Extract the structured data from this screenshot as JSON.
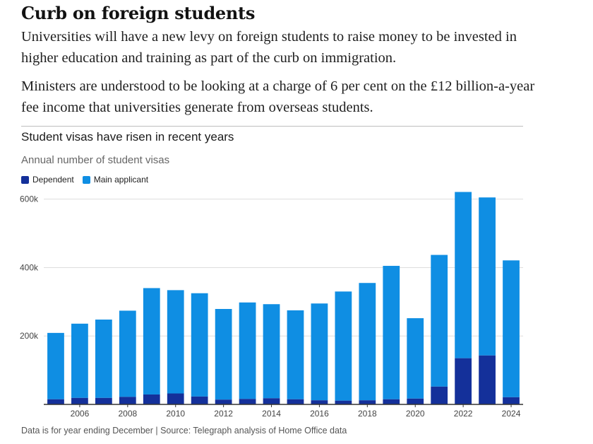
{
  "headline": "Curb on foreign students",
  "standfirst": [
    "Universities will have a new levy on foreign students to raise money to be invested in higher education and training as part of the curb on immigration.",
    "Ministers are understood to be looking at a charge of 6 per cent on the £12 billion-a-year fee income that universities generate from overseas students."
  ],
  "colors": {
    "dependent": "#14309a",
    "main_applicant": "#0f8ee3",
    "gridline": "#dddddd",
    "axis": "#333333"
  },
  "chart_data": {
    "type": "bar",
    "stacked": true,
    "title": "Student visas have risen in recent years",
    "subtitle": "Annual number of student visas",
    "xlabel": "",
    "ylabel": "",
    "categories": [
      2005,
      2006,
      2007,
      2008,
      2009,
      2010,
      2011,
      2012,
      2013,
      2014,
      2015,
      2016,
      2017,
      2018,
      2019,
      2020,
      2021,
      2022,
      2023,
      2024
    ],
    "x_tick_labels": [
      "2006",
      "2008",
      "2010",
      "2012",
      "2014",
      "2016",
      "2018",
      "2020",
      "2022",
      "2024"
    ],
    "y_ticks": [
      200000,
      400000,
      600000
    ],
    "y_tick_labels": [
      "200k",
      "400k",
      "600k"
    ],
    "ylim": [
      0,
      620000
    ],
    "grid": true,
    "legend_position": "top-left",
    "series": [
      {
        "name": "Dependent",
        "values": [
          15000,
          19000,
          19000,
          22000,
          29000,
          32000,
          23000,
          14000,
          16000,
          18000,
          15000,
          12000,
          11000,
          12000,
          15000,
          17000,
          52000,
          135000,
          143000,
          21000
        ]
      },
      {
        "name": "Main applicant",
        "values": [
          194000,
          217000,
          229000,
          252000,
          311000,
          302000,
          302000,
          265000,
          282000,
          275000,
          260000,
          283000,
          319000,
          343000,
          390000,
          235000,
          385000,
          486000,
          462000,
          400000
        ]
      }
    ],
    "source": "Data is for year ending December | Source: Telegraph analysis of Home Office data"
  }
}
